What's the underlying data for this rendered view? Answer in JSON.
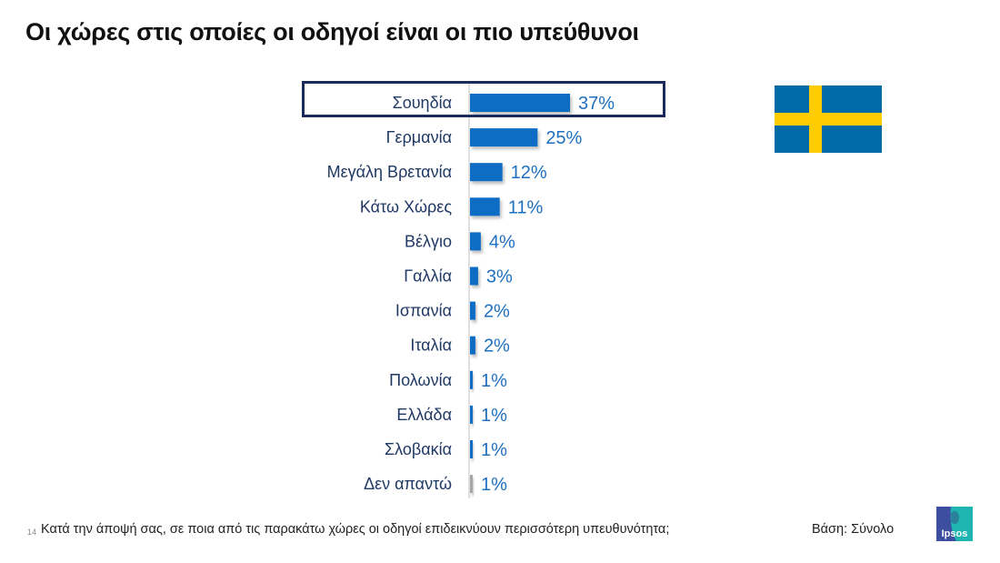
{
  "title": "Οι χώρες στις οποίες οι οδηγοί είναι οι πιο υπεύθυνοι",
  "chart_data": {
    "type": "bar",
    "orientation": "horizontal",
    "title": "Οι χώρες στις οποίες οι οδηγοί είναι οι πιο υπεύθυνοι",
    "xlabel": "",
    "ylabel": "",
    "categories": [
      "Σουηδία",
      "Γερμανία",
      "Μεγάλη Βρετανία",
      "Κάτω Χώρες",
      "Βέλγιο",
      "Γαλλία",
      "Ισπανία",
      "Ιταλία",
      "Πολωνία",
      "Ελλάδα",
      "Σλοβακία",
      "Δεν απαντώ"
    ],
    "values": [
      37,
      25,
      12,
      11,
      4,
      3,
      2,
      2,
      1,
      1,
      1,
      1
    ],
    "value_labels": [
      "37%",
      "25%",
      "12%",
      "11%",
      "4%",
      "3%",
      "2%",
      "2%",
      "1%",
      "1%",
      "1%",
      "1%"
    ],
    "unit": "%",
    "xlim": [
      0,
      100
    ],
    "grid": false,
    "legend": "none",
    "highlighted_category": "Σουηδία",
    "colors": {
      "bar": "#0a6cc4",
      "bar_no_answer": "#a6a6a6",
      "label": "#1f3864",
      "value": "#1f6fc0"
    }
  },
  "flag": {
    "country": "Sweden",
    "colors": {
      "blue": "#006aa7",
      "yellow": "#fecc00"
    }
  },
  "footer": {
    "page_number": "14",
    "question": "Κατά την άποψή σας, σε ποια από τις παρακάτω χώρες οι οδηγοί επιδεικνύουν περισσότερη υπευθυνότητα;",
    "base": "Βάση: Σύνολο"
  },
  "logo": {
    "text": "Ipsos"
  }
}
